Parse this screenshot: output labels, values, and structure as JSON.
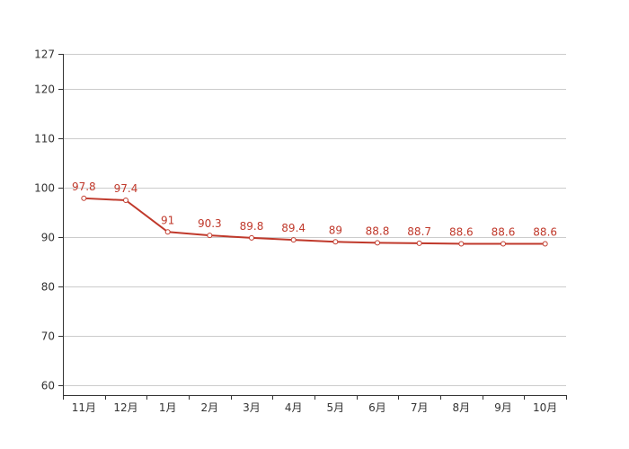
{
  "chart_data": {
    "type": "line",
    "categories": [
      "11月",
      "12月",
      "1月",
      "2月",
      "3月",
      "4月",
      "5月",
      "6月",
      "7月",
      "8月",
      "9月",
      "10月"
    ],
    "series": [
      {
        "values": [
          97.8,
          97.4,
          91,
          90.3,
          89.8,
          89.4,
          89,
          88.8,
          88.7,
          88.6,
          88.6,
          88.6
        ],
        "labels": [
          "97.8",
          "97.4",
          "91",
          "90.3",
          "89.8",
          "89.4",
          "89",
          "88.8",
          "88.7",
          "88.6",
          "88.6",
          "88.6"
        ]
      }
    ],
    "yticks": [
      60,
      70,
      80,
      90,
      100,
      110,
      120,
      127
    ],
    "ylim": [
      58,
      127
    ],
    "grid": true,
    "legend": "none",
    "title": "",
    "xlabel": "",
    "ylabel": ""
  },
  "colors": {
    "line": "#c0392b",
    "grid": "#cccccc",
    "axis": "#333333",
    "label": "#c0392b",
    "marker_fill": "#ffffff"
  }
}
